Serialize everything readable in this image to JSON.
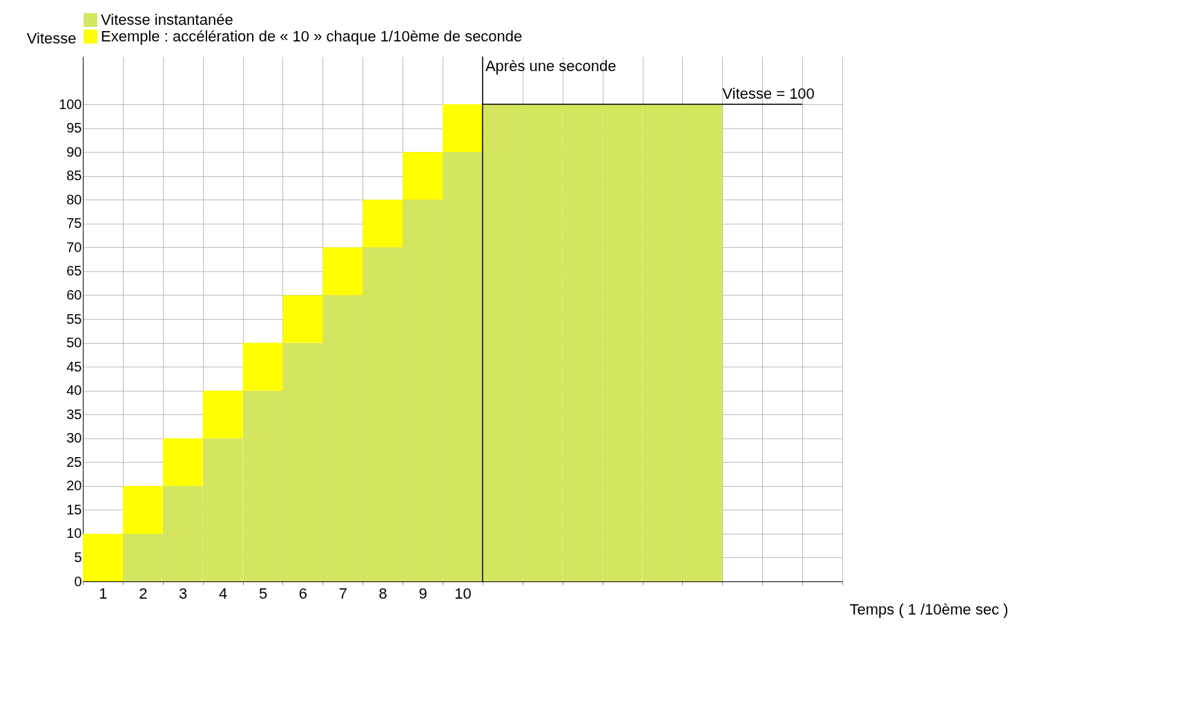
{
  "chart_data": {
    "type": "bar",
    "stacked": true,
    "xlabel": "Temps ( 1 /10ème sec )",
    "ylabel": "Vitesse",
    "categories": [
      "1",
      "2",
      "3",
      "4",
      "5",
      "6",
      "7",
      "8",
      "9",
      "10",
      null,
      null,
      null,
      null,
      null,
      null,
      null,
      null,
      null
    ],
    "series": [
      {
        "name": "Vitesse instantanée",
        "color": "#d4e65f",
        "values": [
          0,
          10,
          20,
          30,
          40,
          50,
          60,
          70,
          80,
          90,
          100,
          100,
          100,
          100,
          100,
          100,
          null,
          null,
          null
        ]
      },
      {
        "name": "Exemple : accélération de « 10 » chaque 1/10ème de seconde",
        "color": "#ffff00",
        "values": [
          10,
          10,
          10,
          10,
          10,
          10,
          10,
          10,
          10,
          10,
          null,
          null,
          null,
          null,
          null,
          null,
          null,
          null,
          null
        ]
      }
    ],
    "ylim": [
      0,
      110
    ],
    "yticks": [
      0,
      5,
      10,
      15,
      20,
      25,
      30,
      35,
      40,
      45,
      50,
      55,
      60,
      65,
      70,
      75,
      80,
      85,
      90,
      95,
      100
    ],
    "grid": true,
    "legend": "top left",
    "ref_lines": [
      {
        "axis": "x",
        "value": "10",
        "label": "Après une seconde",
        "color": "#000000"
      },
      {
        "axis": "y",
        "value": 100,
        "label": "Vitesse = 100",
        "color": "#000000"
      }
    ]
  }
}
